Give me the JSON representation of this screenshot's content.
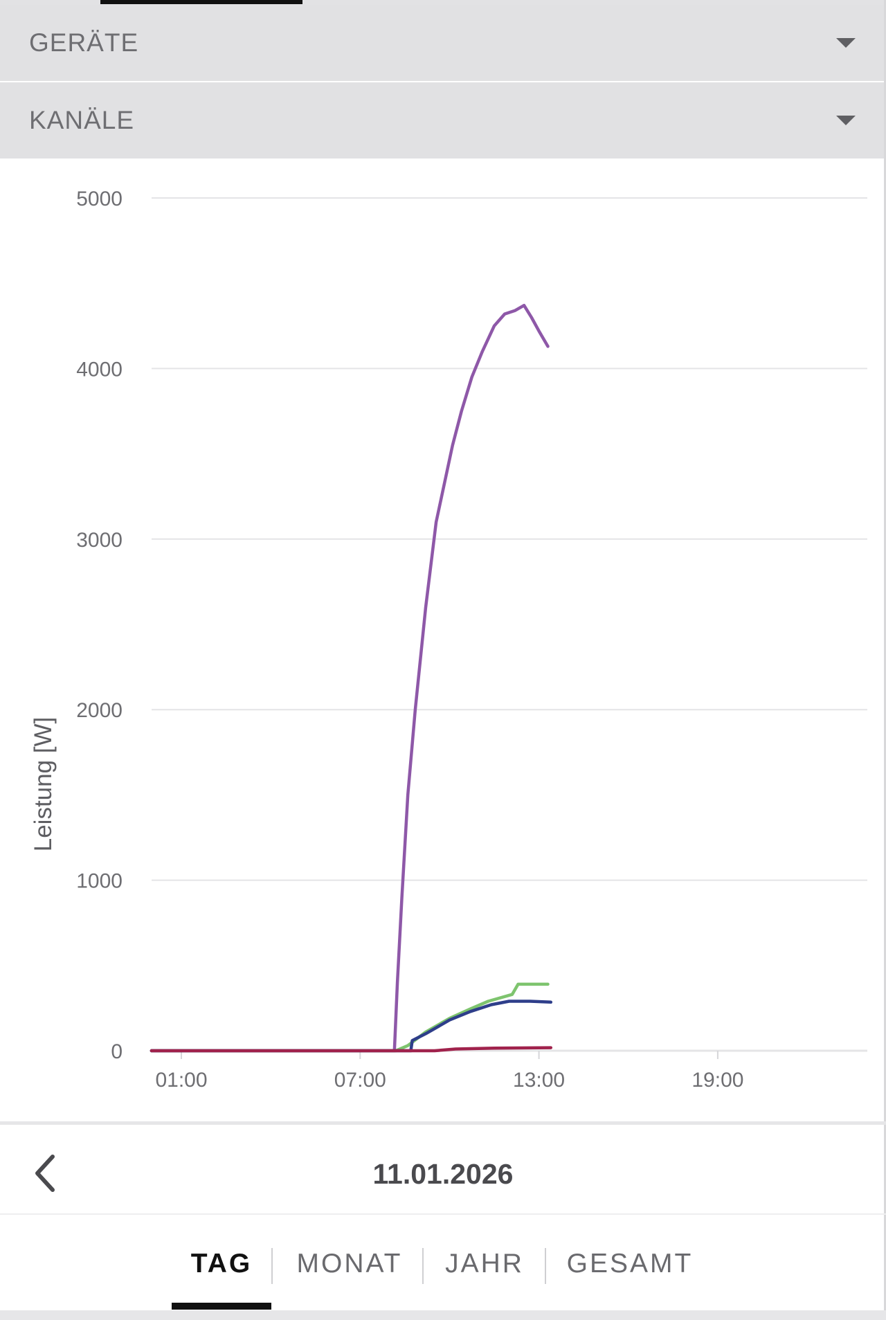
{
  "accordions": {
    "devices": {
      "label": "GERÄTE"
    },
    "channels": {
      "label": "KANÄLE"
    }
  },
  "chart_data": {
    "type": "line",
    "ylabel": "Leistung [W]",
    "xlabel": "",
    "ylim": [
      0,
      5000
    ],
    "yticks": [
      0,
      1000,
      2000,
      3000,
      4000,
      5000
    ],
    "x_ticks": [
      "01:00",
      "07:00",
      "13:00",
      "19:00"
    ],
    "x_unit": "hours",
    "xlim": [
      0,
      24
    ],
    "grid": true,
    "series": [
      {
        "color": "#8e58a8",
        "points": [
          [
            0,
            0
          ],
          [
            8,
            0
          ],
          [
            8.15,
            0
          ],
          [
            8.25,
            400
          ],
          [
            8.4,
            900
          ],
          [
            8.6,
            1500
          ],
          [
            8.85,
            2000
          ],
          [
            9.2,
            2600
          ],
          [
            9.55,
            3100
          ],
          [
            10.1,
            3550
          ],
          [
            10.4,
            3750
          ],
          [
            10.75,
            3950
          ],
          [
            11.1,
            4100
          ],
          [
            11.5,
            4250
          ],
          [
            11.85,
            4320
          ],
          [
            12.2,
            4340
          ],
          [
            12.5,
            4370
          ],
          [
            12.75,
            4300
          ],
          [
            13.0,
            4220
          ],
          [
            13.3,
            4130
          ]
        ]
      },
      {
        "color": "#7ec46e",
        "points": [
          [
            0,
            0
          ],
          [
            8,
            0
          ],
          [
            8.2,
            0
          ],
          [
            8.6,
            30
          ],
          [
            9.2,
            110
          ],
          [
            10,
            190
          ],
          [
            10.7,
            245
          ],
          [
            11.3,
            290
          ],
          [
            12.1,
            330
          ],
          [
            12.3,
            390
          ],
          [
            12.8,
            390
          ],
          [
            13.3,
            390
          ]
        ]
      },
      {
        "color": "#2e3e8a",
        "points": [
          [
            0,
            0
          ],
          [
            8.7,
            0
          ],
          [
            8.75,
            60
          ],
          [
            9.2,
            100
          ],
          [
            10,
            180
          ],
          [
            10.7,
            230
          ],
          [
            11.4,
            270
          ],
          [
            12,
            290
          ],
          [
            12.7,
            290
          ],
          [
            13.4,
            285
          ]
        ]
      },
      {
        "color": "#a0224c",
        "points": [
          [
            0,
            0
          ],
          [
            9.5,
            0
          ],
          [
            10.2,
            10
          ],
          [
            11.5,
            15
          ],
          [
            13.4,
            18
          ]
        ]
      }
    ]
  },
  "date_nav": {
    "date": "11.01.2026"
  },
  "tabs": {
    "day": "TAG",
    "month": "MONAT",
    "year": "JAHR",
    "total": "GESAMT"
  }
}
